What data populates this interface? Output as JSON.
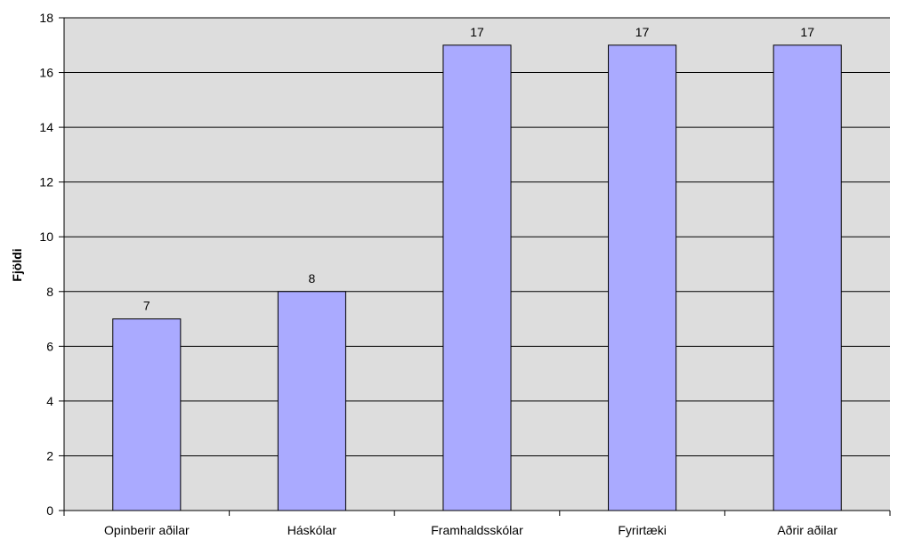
{
  "chart_data": {
    "type": "bar",
    "title": "",
    "xlabel": "",
    "ylabel": "Fjöldi",
    "ylim": [
      0,
      18
    ],
    "ytick_step": 2,
    "grid": true,
    "legend": "none",
    "categories": [
      "Opinberir aðilar",
      "Háskólar",
      "Framhaldsskólar",
      "Fyrirtæki",
      "Aðrir aðilar"
    ],
    "values": [
      7,
      8,
      17,
      17,
      17
    ],
    "data_labels": [
      "7",
      "8",
      "17",
      "17",
      "17"
    ],
    "colors": {
      "plot_background": "#dddddd",
      "bar_fill": "#aaaaff",
      "bar_stroke": "#000000",
      "gridline": "#000000",
      "axis": "#000000"
    }
  }
}
